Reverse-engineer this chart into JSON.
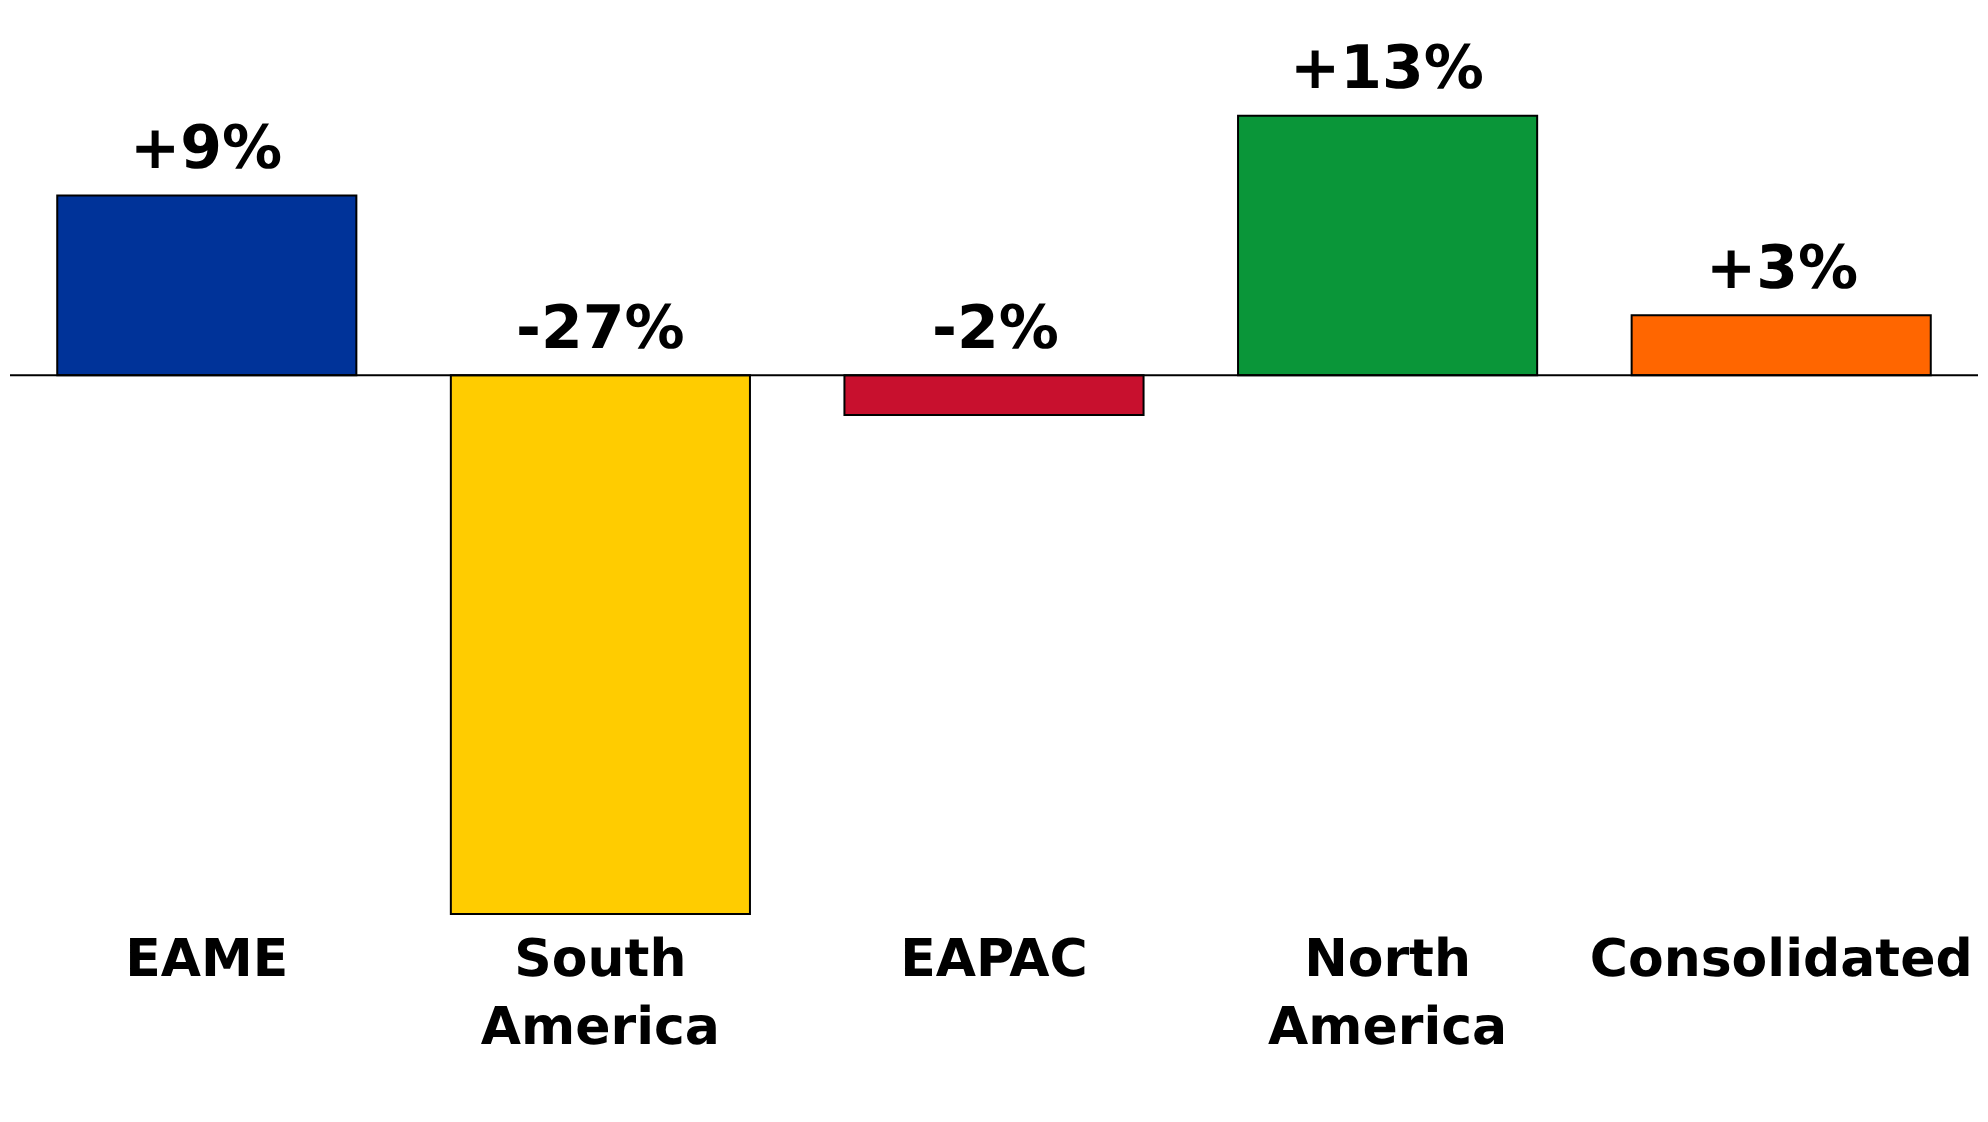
{
  "chart_data": {
    "type": "bar",
    "categories": [
      "EAME",
      "South America",
      "EAPAC",
      "North America",
      "Consolidated"
    ],
    "values": [
      9,
      -27,
      -2,
      13,
      3
    ],
    "colors": [
      "#003399",
      "#ffcc00",
      "#c8102e",
      "#0a9639",
      "#ff6600"
    ],
    "value_labels": [
      "+9%",
      "-27%",
      "-2%",
      "+13%",
      "+3%"
    ]
  }
}
